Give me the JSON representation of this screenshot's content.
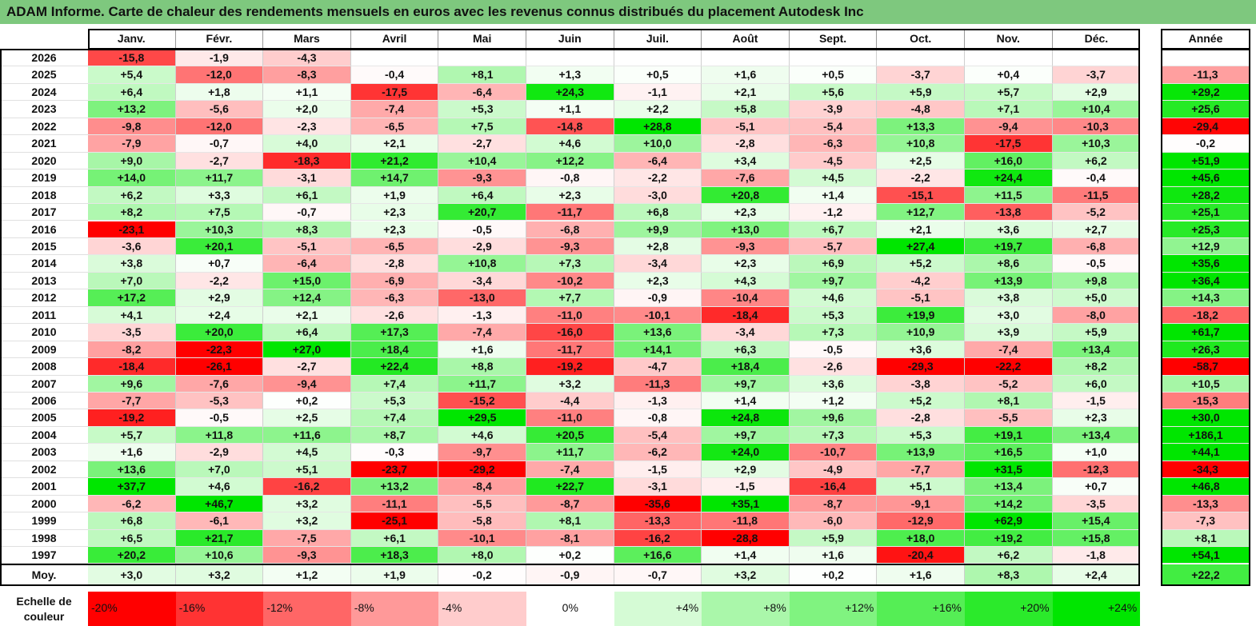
{
  "title": "ADAM Informe. Carte de chaleur des rendements mensuels en euros avec les revenus connus distribués du placement Autodesk Inc",
  "chart_data": {
    "type": "heatmap",
    "title": "ADAM Informe. Carte de chaleur des rendements mensuels en euros avec les revenus connus distribués du placement Autodesk Inc",
    "columns": [
      "Janv.",
      "Févr.",
      "Mars",
      "Avril",
      "Mai",
      "Juin",
      "Juil.",
      "Août",
      "Sept.",
      "Oct.",
      "Nov.",
      "Déc."
    ],
    "year_column": "Année",
    "rows": [
      {
        "year": "2026",
        "values": [
          "-15,8",
          "-1,9",
          "-4,3",
          "",
          "",
          "",
          "",
          "",
          "",
          "",
          "",
          ""
        ],
        "annual": ""
      },
      {
        "year": "2025",
        "values": [
          "+5,4",
          "-12,0",
          "-8,3",
          "-0,4",
          "+8,1",
          "+1,3",
          "+0,5",
          "+1,6",
          "+0,5",
          "-3,7",
          "+0,4",
          "-3,7"
        ],
        "annual": "-11,3"
      },
      {
        "year": "2024",
        "values": [
          "+6,4",
          "+1,8",
          "+1,1",
          "-17,5",
          "-6,4",
          "+24,3",
          "-1,1",
          "+2,1",
          "+5,6",
          "+5,9",
          "+5,7",
          "+2,9"
        ],
        "annual": "+29,2"
      },
      {
        "year": "2023",
        "values": [
          "+13,2",
          "-5,6",
          "+2,0",
          "-7,4",
          "+5,3",
          "+1,1",
          "+2,2",
          "+5,8",
          "-3,9",
          "-4,8",
          "+7,1",
          "+10,4"
        ],
        "annual": "+25,6"
      },
      {
        "year": "2022",
        "values": [
          "-9,8",
          "-12,0",
          "-2,3",
          "-6,5",
          "+7,5",
          "-14,8",
          "+28,8",
          "-5,1",
          "-5,4",
          "+13,3",
          "-9,4",
          "-10,3"
        ],
        "annual": "-29,4"
      },
      {
        "year": "2021",
        "values": [
          "-7,9",
          "-0,7",
          "+4,0",
          "+2,1",
          "-2,7",
          "+4,6",
          "+10,0",
          "-2,8",
          "-6,3",
          "+10,8",
          "-17,5",
          "+10,3"
        ],
        "annual": "-0,2"
      },
      {
        "year": "2020",
        "values": [
          "+9,0",
          "-2,7",
          "-18,3",
          "+21,2",
          "+10,4",
          "+12,2",
          "-6,4",
          "+3,4",
          "-4,5",
          "+2,5",
          "+16,0",
          "+6,2"
        ],
        "annual": "+51,9"
      },
      {
        "year": "2019",
        "values": [
          "+14,0",
          "+11,7",
          "-3,1",
          "+14,7",
          "-9,3",
          "-0,8",
          "-2,2",
          "-7,6",
          "+4,5",
          "-2,2",
          "+24,4",
          "-0,4"
        ],
        "annual": "+45,6"
      },
      {
        "year": "2018",
        "values": [
          "+6,2",
          "+3,3",
          "+6,1",
          "+1,9",
          "+6,4",
          "+2,3",
          "-3,0",
          "+20,8",
          "+1,4",
          "-15,1",
          "+11,5",
          "-11,5"
        ],
        "annual": "+28,2"
      },
      {
        "year": "2017",
        "values": [
          "+8,2",
          "+7,5",
          "-0,7",
          "+2,3",
          "+20,7",
          "-11,7",
          "+6,8",
          "+2,3",
          "-1,2",
          "+12,7",
          "-13,8",
          "-5,2"
        ],
        "annual": "+25,1"
      },
      {
        "year": "2016",
        "values": [
          "-23,1",
          "+10,3",
          "+8,3",
          "+2,3",
          "-0,5",
          "-6,8",
          "+9,9",
          "+13,0",
          "+6,7",
          "+2,1",
          "+3,6",
          "+2,7"
        ],
        "annual": "+25,3"
      },
      {
        "year": "2015",
        "values": [
          "-3,6",
          "+20,1",
          "-5,1",
          "-6,5",
          "-2,9",
          "-9,3",
          "+2,8",
          "-9,3",
          "-5,7",
          "+27,4",
          "+19,7",
          "-6,8"
        ],
        "annual": "+12,9"
      },
      {
        "year": "2014",
        "values": [
          "+3,8",
          "+0,7",
          "-6,4",
          "-2,8",
          "+10,8",
          "+7,3",
          "-3,4",
          "+2,3",
          "+6,9",
          "+5,2",
          "+8,6",
          "-0,5"
        ],
        "annual": "+35,6"
      },
      {
        "year": "2013",
        "values": [
          "+7,0",
          "-2,2",
          "+15,0",
          "-6,9",
          "-3,4",
          "-10,2",
          "+2,3",
          "+4,3",
          "+9,7",
          "-4,2",
          "+13,9",
          "+9,8"
        ],
        "annual": "+36,4"
      },
      {
        "year": "2012",
        "values": [
          "+17,2",
          "+2,9",
          "+12,4",
          "-6,3",
          "-13,0",
          "+7,7",
          "-0,9",
          "-10,4",
          "+4,6",
          "-5,1",
          "+3,8",
          "+5,0"
        ],
        "annual": "+14,3"
      },
      {
        "year": "2011",
        "values": [
          "+4,1",
          "+2,4",
          "+2,1",
          "-2,6",
          "-1,3",
          "-11,0",
          "-10,1",
          "-18,4",
          "+5,3",
          "+19,9",
          "+3,0",
          "-8,0"
        ],
        "annual": "-18,2"
      },
      {
        "year": "2010",
        "values": [
          "-3,5",
          "+20,0",
          "+6,4",
          "+17,3",
          "-7,4",
          "-16,0",
          "+13,6",
          "-3,4",
          "+7,3",
          "+10,9",
          "+3,9",
          "+5,9"
        ],
        "annual": "+61,7"
      },
      {
        "year": "2009",
        "values": [
          "-8,2",
          "-22,3",
          "+27,0",
          "+18,4",
          "+1,6",
          "-11,7",
          "+14,1",
          "+6,3",
          "-0,5",
          "+3,6",
          "-7,4",
          "+13,4"
        ],
        "annual": "+26,3"
      },
      {
        "year": "2008",
        "values": [
          "-18,4",
          "-26,1",
          "-2,7",
          "+22,4",
          "+8,8",
          "-19,2",
          "-4,7",
          "+18,4",
          "-2,6",
          "-29,3",
          "-22,2",
          "+8,2"
        ],
        "annual": "-58,7"
      },
      {
        "year": "2007",
        "values": [
          "+9,6",
          "-7,6",
          "-9,4",
          "+7,4",
          "+11,7",
          "+3,2",
          "-11,3",
          "+9,7",
          "+3,6",
          "-3,8",
          "-5,2",
          "+6,0"
        ],
        "annual": "+10,5"
      },
      {
        "year": "2006",
        "values": [
          "-7,7",
          "-5,3",
          "+0,2",
          "+5,3",
          "-15,2",
          "-4,4",
          "-1,3",
          "+1,4",
          "+1,2",
          "+5,2",
          "+8,1",
          "-1,5"
        ],
        "annual": "-15,3"
      },
      {
        "year": "2005",
        "values": [
          "-19,2",
          "-0,5",
          "+2,5",
          "+7,4",
          "+29,5",
          "-11,0",
          "-0,8",
          "+24,8",
          "+9,6",
          "-2,8",
          "-5,5",
          "+2,3"
        ],
        "annual": "+30,0"
      },
      {
        "year": "2004",
        "values": [
          "+5,7",
          "+11,8",
          "+11,6",
          "+8,7",
          "+4,6",
          "+20,5",
          "-5,4",
          "+9,7",
          "+7,3",
          "+5,3",
          "+19,1",
          "+13,4"
        ],
        "annual": "+186,1"
      },
      {
        "year": "2003",
        "values": [
          "+1,6",
          "-2,9",
          "+4,5",
          "-0,3",
          "-9,7",
          "+11,7",
          "-6,2",
          "+24,0",
          "-10,7",
          "+13,9",
          "+16,5",
          "+1,0"
        ],
        "annual": "+44,1"
      },
      {
        "year": "2002",
        "values": [
          "+13,6",
          "+7,0",
          "+5,1",
          "-23,7",
          "-29,2",
          "-7,4",
          "-1,5",
          "+2,9",
          "-4,9",
          "-7,7",
          "+31,5",
          "-12,3"
        ],
        "annual": "-34,3"
      },
      {
        "year": "2001",
        "values": [
          "+37,7",
          "+4,6",
          "-16,2",
          "+13,2",
          "-8,4",
          "+22,7",
          "-3,1",
          "-1,5",
          "-16,4",
          "+5,1",
          "+13,4",
          "+0,7"
        ],
        "annual": "+46,8"
      },
      {
        "year": "2000",
        "values": [
          "-6,2",
          "+46,7",
          "+3,2",
          "-11,1",
          "-5,5",
          "-8,7",
          "-35,6",
          "+35,1",
          "-8,7",
          "-9,1",
          "+14,2",
          "-3,5"
        ],
        "annual": "-13,3"
      },
      {
        "year": "1999",
        "values": [
          "+6,8",
          "-6,1",
          "+3,2",
          "-25,1",
          "-5,8",
          "+8,1",
          "-13,3",
          "-11,8",
          "-6,0",
          "-12,9",
          "+62,9",
          "+15,4"
        ],
        "annual": "-7,3"
      },
      {
        "year": "1998",
        "values": [
          "+6,5",
          "+21,7",
          "-7,5",
          "+6,1",
          "-10,1",
          "-8,1",
          "-16,2",
          "-28,8",
          "+5,9",
          "+18,0",
          "+19,2",
          "+15,8"
        ],
        "annual": "+8,1"
      },
      {
        "year": "1997",
        "values": [
          "+20,2",
          "+10,6",
          "-9,3",
          "+18,3",
          "+8,0",
          "+0,2",
          "+16,6",
          "+1,4",
          "+1,6",
          "-20,4",
          "+6,2",
          "-1,8"
        ],
        "annual": "+54,1"
      }
    ],
    "average": {
      "label": "Moy.",
      "values": [
        "+3,0",
        "+3,2",
        "+1,2",
        "+1,9",
        "-0,2",
        "-0,9",
        "-0,7",
        "+3,2",
        "+0,2",
        "+1,6",
        "+8,3",
        "+2,4"
      ],
      "annual": "+22,2"
    },
    "scale": {
      "label": "Echelle de couleur",
      "stops": [
        "-20%",
        "-16%",
        "-12%",
        "-8%",
        "-4%",
        "0%",
        "+4%",
        "+8%",
        "+12%",
        "+16%",
        "+20%",
        "+24%"
      ]
    },
    "colors": {
      "neg_max": "#ff0000",
      "neutral": "#ffffff",
      "pos_max": "#00e600",
      "title_bg": "#7ec87e"
    }
  }
}
